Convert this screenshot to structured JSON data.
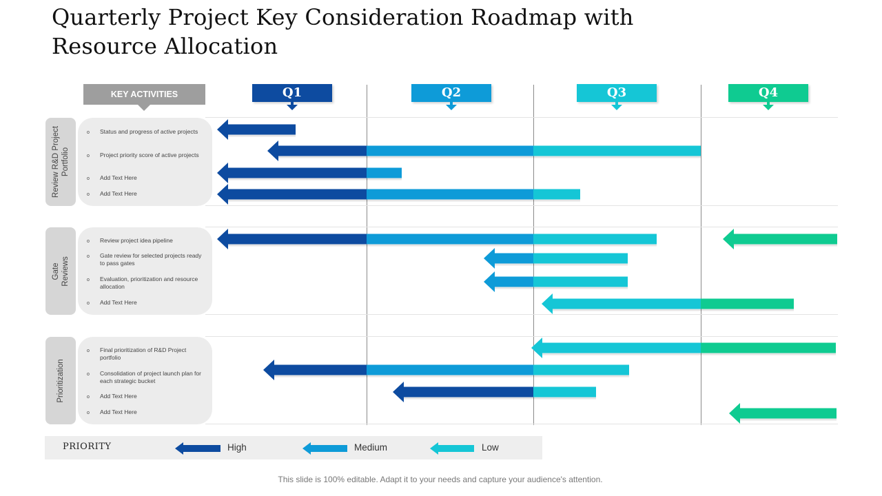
{
  "title": "Quarterly Project Key Consideration Roadmap with Resource Allocation",
  "key_activities_label": "KEY ACTIVITIES",
  "quarters": [
    "Q1",
    "Q2",
    "Q3",
    "Q4"
  ],
  "colors": {
    "high": "#0d4ba0",
    "medium": "#0e9bd8",
    "low": "#15c6d6",
    "q4": "#0fcb91",
    "key_activities_bg": "#9e9e9e"
  },
  "sections": [
    {
      "label": "Review  R&D Project Portfolio",
      "items": [
        "Status and progress of active projects",
        "Project priority score of active projects",
        "Add Text Here",
        "Add Text Here"
      ]
    },
    {
      "label": "Gate Reviews",
      "items": [
        "Review project idea pipeline",
        "Gate review for selected projects ready to pass gates",
        "Evaluation, prioritization and resource allocation",
        "Add Text Here"
      ]
    },
    {
      "label": "Prioritization",
      "items": [
        "Final prioritization of R&D Project portfolio",
        "Consolidation of project launch plan for each strategic bucket",
        "Add Text Here",
        "Add Text Here"
      ]
    }
  ],
  "legend": {
    "title": "PRIORITY",
    "high": "High",
    "medium": "Medium",
    "low": "Low"
  },
  "footer": "This slide is 100% editable. Adapt it to your needs and capture your audience's attention."
}
